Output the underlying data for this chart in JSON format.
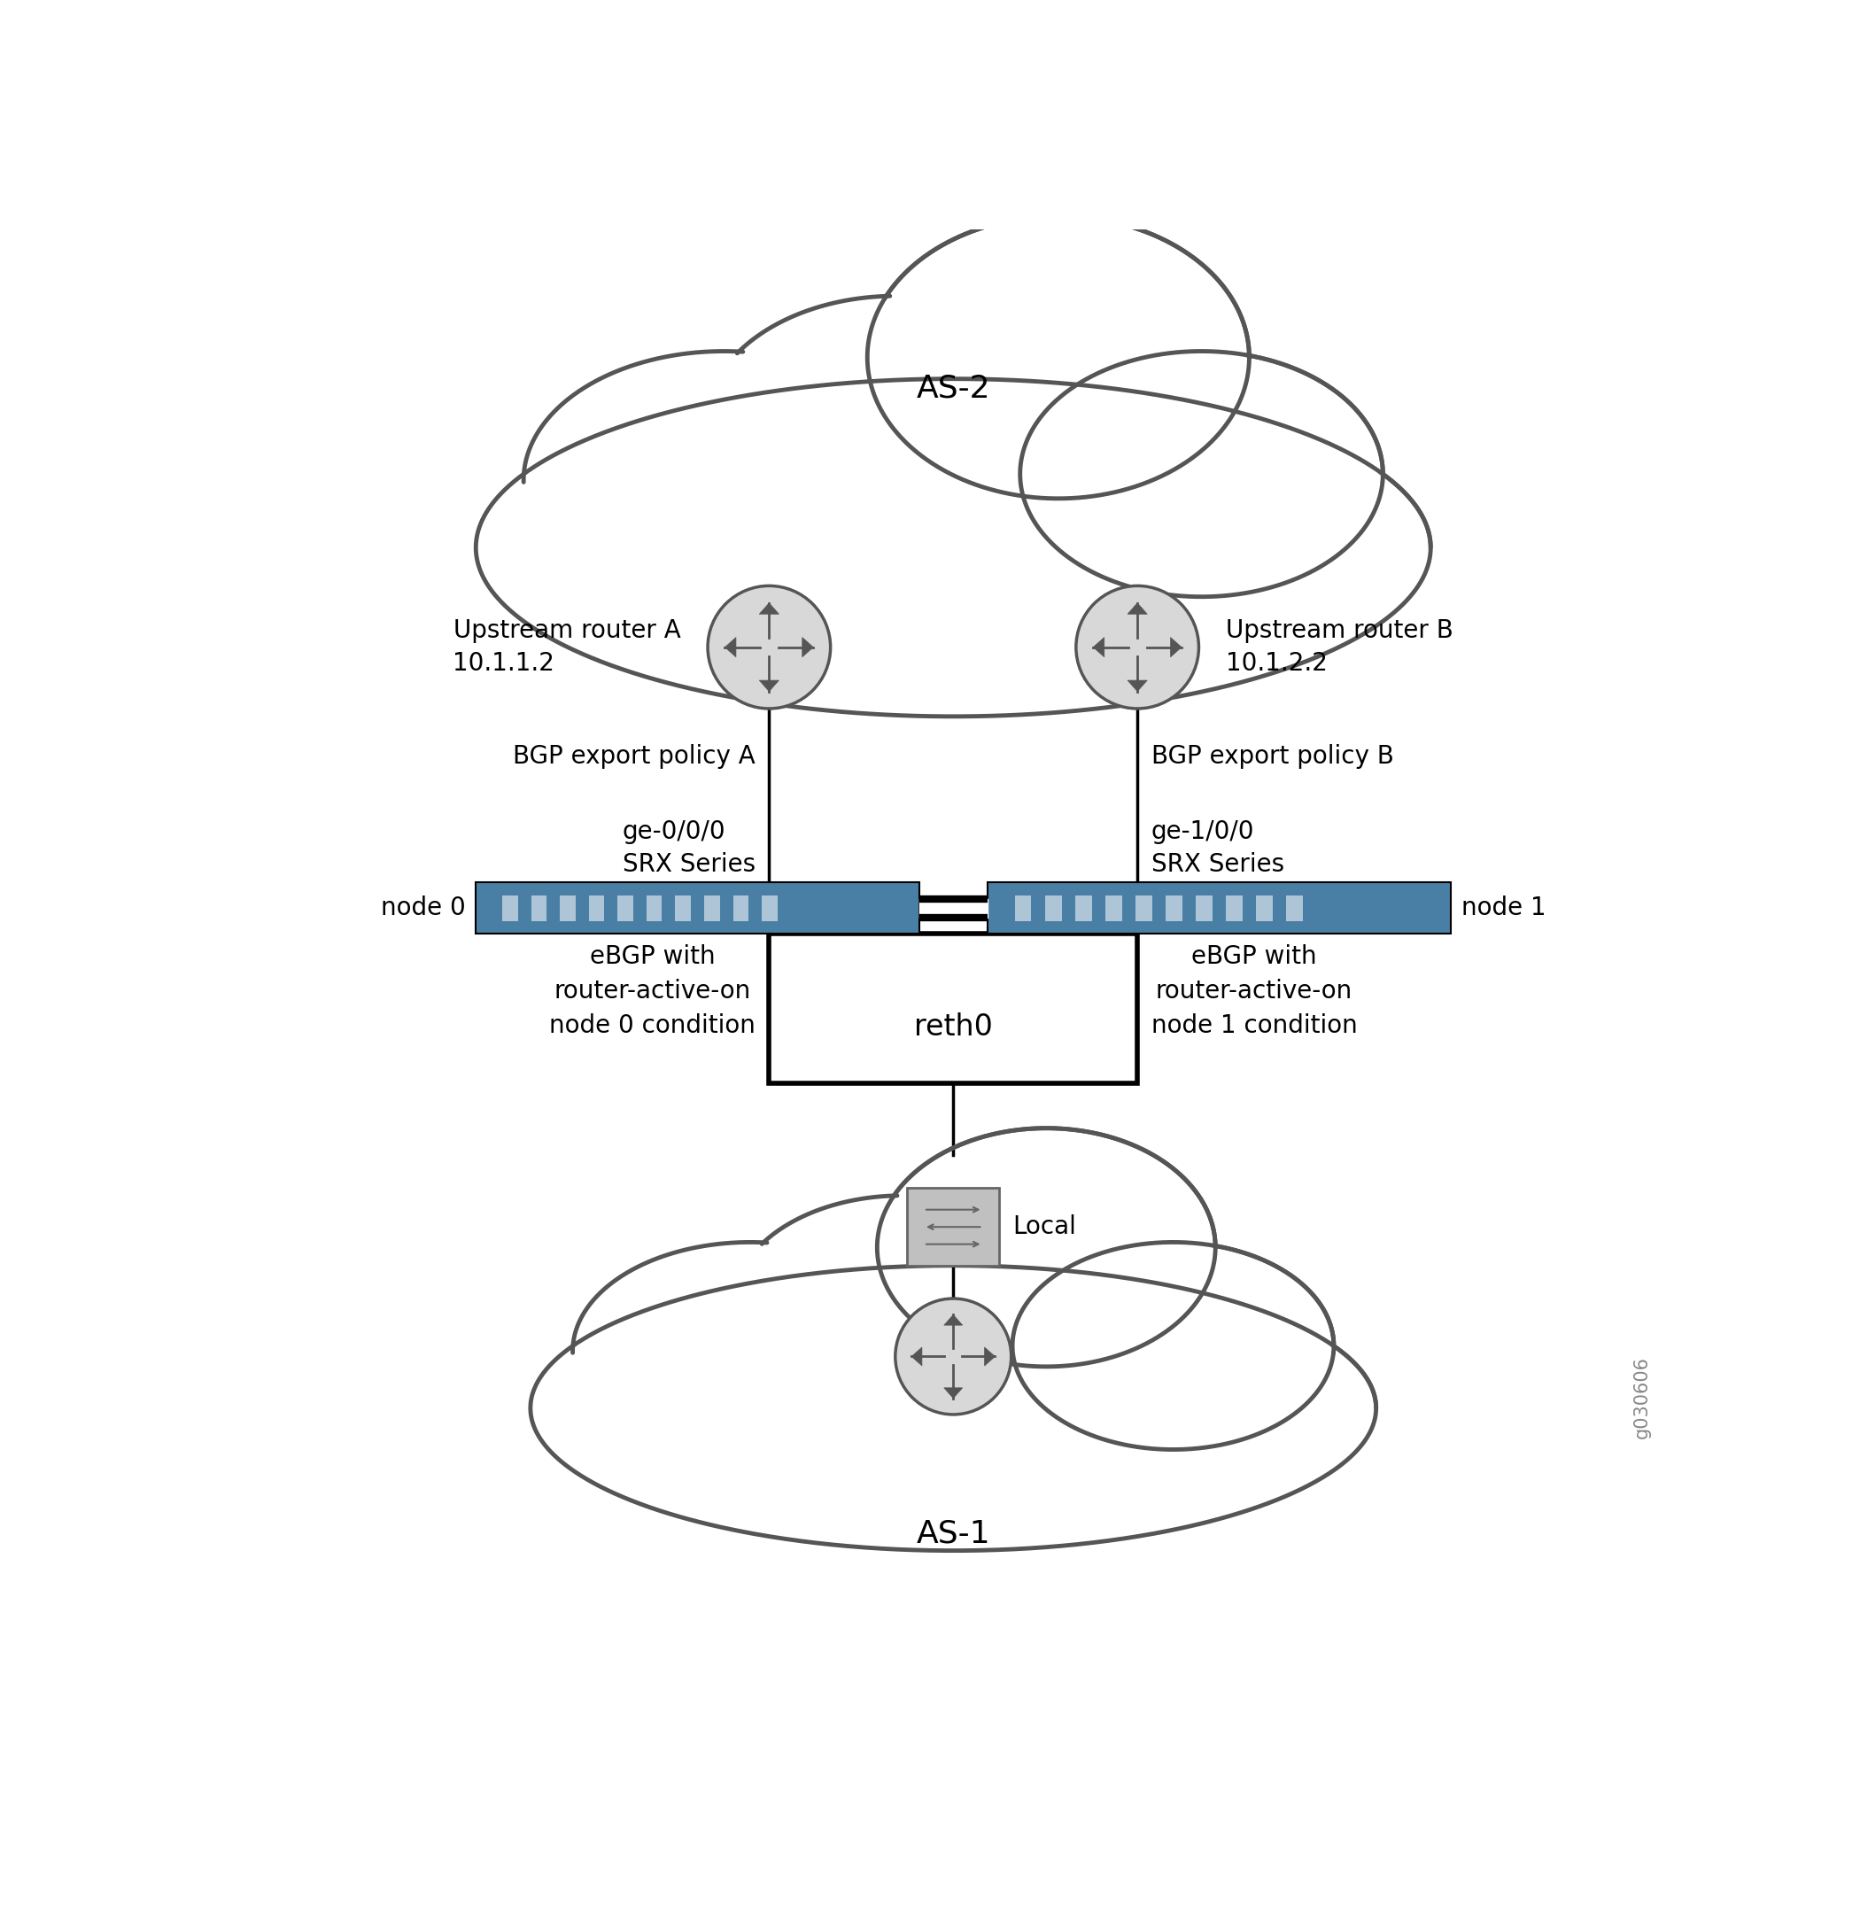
{
  "bg_color": "#ffffff",
  "cloud_edge_color": "#555555",
  "cloud_lw": 3.5,
  "router_fill": "#d8d8d8",
  "router_edge": "#555555",
  "router_lw": 2.5,
  "srx_fill": "#4a7fa5",
  "srx_edge": "#000000",
  "line_color": "#000000",
  "line_lw": 2.5,
  "reth_lw": 4.0,
  "text_color": "#000000",
  "label_fontsize": 24,
  "small_fontsize": 20,
  "title_label": "AS-2",
  "as1_label": "AS-1",
  "upstream_a_label": "Upstream router A\n10.1.1.2",
  "upstream_b_label": "Upstream router B\n10.1.2.2",
  "bgp_a_label": "BGP export policy A",
  "bgp_b_label": "BGP export policy B",
  "ge_a_label": "ge-0/0/0\nSRX Series",
  "ge_b_label": "ge-1/0/0\nSRX Series",
  "node0_label": "node 0",
  "node1_label": "node 1",
  "ebgp_a_label": "eBGP with\nrouter-active-on\nnode 0 condition",
  "ebgp_b_label": "eBGP with\nrouter-active-on\nnode 1 condition",
  "reth0_label": "reth0",
  "local_label": "Local",
  "watermark": "g030606"
}
